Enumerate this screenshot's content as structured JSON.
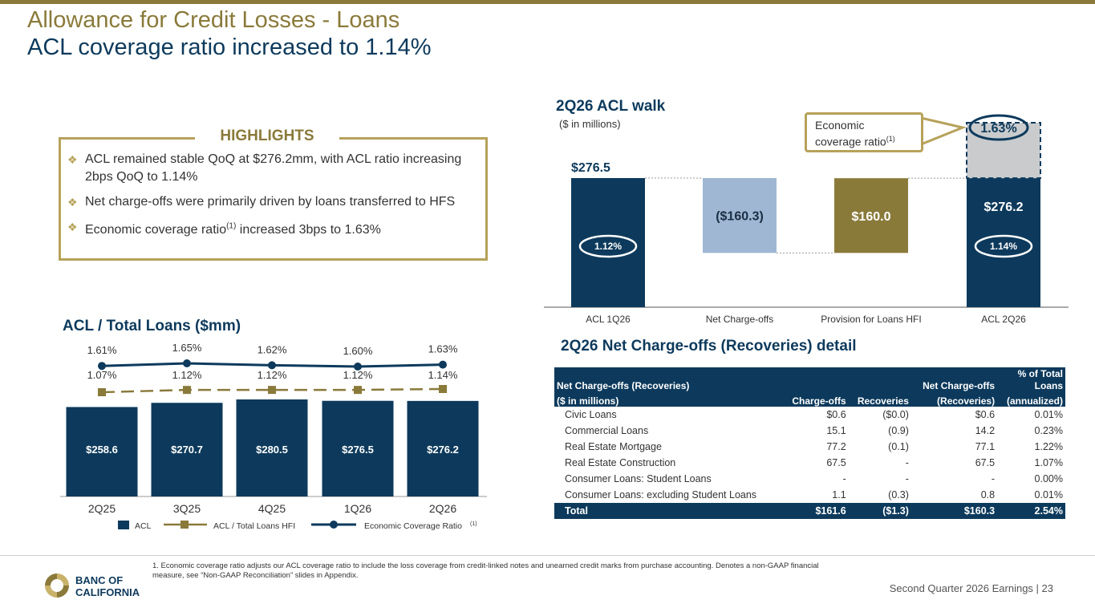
{
  "header": {
    "title": "Allowance for Credit Losses - Loans",
    "subtitle": "ACL coverage ratio increased to 1.14%"
  },
  "highlights": {
    "title": "HIGHLIGHTS",
    "items": [
      "ACL remained stable QoQ at $276.2mm, with ACL ratio increasing 2bps QoQ to 1.14%",
      "Net charge-offs were primarily driven by loans transferred to HFS",
      "Economic coverage ratio(1) increased 3bps to 1.63%"
    ]
  },
  "walk": {
    "title": "2Q26 ACL walk",
    "subtitle": "($ in millions)",
    "callout": "Economic coverage ratio",
    "callout_sup": "(1)"
  },
  "loans_chart": {
    "title": "ACL / Total Loans ($mm)"
  },
  "nco_section": {
    "title": "2Q26 Net Charge-offs (Recoveries) detail"
  },
  "nco_table": {
    "headers": {
      "col0_l1": "Net Charge-offs (Recoveries)",
      "col0_l2": "($ in millions)",
      "col1": "Charge-offs",
      "col2": "Recoveries",
      "col3_l1": "Net Charge-offs",
      "col3_l2": "(Recoveries)",
      "col4_l1": "% of Total",
      "col4_l2": "Loans",
      "col4_l3": "(annualized)"
    },
    "rows": [
      [
        "Civic Loans",
        "$0.6",
        "($0.0)",
        "$0.6",
        "0.01%"
      ],
      [
        "Commercial Loans",
        "15.1",
        "(0.9)",
        "14.2",
        "0.23%"
      ],
      [
        "Real Estate Mortgage",
        "77.2",
        "(0.1)",
        "77.1",
        "1.22%"
      ],
      [
        "Real Estate Construction",
        "67.5",
        "-",
        "67.5",
        "1.07%"
      ],
      [
        "Consumer Loans: Student Loans",
        "-",
        "-",
        "-",
        "0.00%"
      ],
      [
        "Consumer Loans: excluding Student Loans",
        "1.1",
        "(0.3)",
        "0.8",
        "0.01%"
      ]
    ],
    "total": [
      "Total",
      "$161.6",
      "($1.3)",
      "$160.3",
      "2.54%"
    ]
  },
  "footer": {
    "footnote": "1.  Economic coverage ratio adjusts our ACL coverage ratio to include the loss coverage from credit-linked notes and unearned credit marks from purchase accounting. Denotes a non-GAAP financial measure, see “Non-GAAP Reconciliation” slides in Appendix.",
    "brand_line1": "BANC OF",
    "brand_line2": "CALIFORNIA",
    "page": "Second Quarter 2026 Earnings |  23"
  },
  "colors": {
    "navy": "#0d3a5c",
    "gold": "#8a7a3a",
    "lightblue": "#9fb7d3",
    "olive": "#8a7a3a",
    "grey": "#c9cbcd"
  },
  "chart_data": [
    {
      "type": "bar",
      "title": "2Q26 ACL walk",
      "subtitle": "($ in millions)",
      "categories": [
        "ACL 1Q26",
        "Net Charge-offs",
        "Provision for Loans HFI",
        "ACL 2Q26"
      ],
      "values": [
        276.5,
        -160.3,
        160.0,
        276.2
      ],
      "labels": [
        "$276.5",
        "($160.3)",
        "$160.0",
        "$276.2"
      ],
      "acl_ratios": [
        "1.12%",
        "",
        "",
        "1.14%"
      ],
      "economic_coverage_ratio": "1.63%",
      "economic_coverage_extra": 118.8
    },
    {
      "type": "bar",
      "title": "ACL / Total Loans ($mm)",
      "categories": [
        "2Q25",
        "3Q25",
        "4Q25",
        "1Q26",
        "2Q26"
      ],
      "series": [
        {
          "name": "ACL",
          "values": [
            258.6,
            270.7,
            280.5,
            276.5,
            276.2
          ],
          "labels": [
            "$258.6",
            "$270.7",
            "$280.5",
            "$276.5",
            "$276.2"
          ]
        },
        {
          "name": "ACL / Total Loans HFI",
          "values": [
            1.07,
            1.12,
            1.12,
            1.12,
            1.14
          ],
          "labels": [
            "1.07%",
            "1.12%",
            "1.12%",
            "1.12%",
            "1.14%"
          ]
        },
        {
          "name": "Economic Coverage Ratio",
          "name_sup": "(1)",
          "values": [
            1.61,
            1.65,
            1.62,
            1.6,
            1.63
          ],
          "labels": [
            "1.61%",
            "1.65%",
            "1.62%",
            "1.60%",
            "1.63%"
          ]
        }
      ]
    }
  ]
}
